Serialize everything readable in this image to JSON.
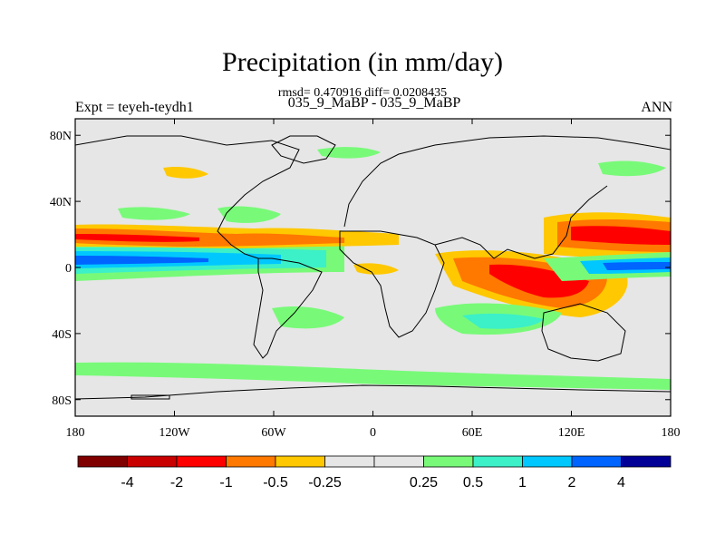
{
  "header": {
    "title": "Precipitation (in mm/day)",
    "stats": "rmsd= 0.470916 diff= 0.0208435",
    "comparison": "035_9_MaBP - 035_9_MaBP",
    "left_label": "Expt = teyeh-teydh1",
    "right_label": "ANN"
  },
  "map": {
    "background_color": "#e6e6e6",
    "lat_ticks": [
      {
        "value": 80,
        "label": "80N"
      },
      {
        "value": 40,
        "label": "40N"
      },
      {
        "value": 0,
        "label": "0"
      },
      {
        "value": -40,
        "label": "40S"
      },
      {
        "value": -80,
        "label": "80S"
      }
    ],
    "lon_ticks": [
      {
        "value": -180,
        "label": "180"
      },
      {
        "value": -120,
        "label": "120W"
      },
      {
        "value": -60,
        "label": "60W"
      },
      {
        "value": 0,
        "label": "0"
      },
      {
        "value": 60,
        "label": "60E"
      },
      {
        "value": 120,
        "label": "120E"
      },
      {
        "value": 180,
        "label": "180"
      }
    ]
  },
  "colorbar": {
    "colors": [
      "#800000",
      "#c80000",
      "#ff0000",
      "#ff7800",
      "#ffc800",
      "#e6e6e6",
      "#e6e6e6",
      "#78fa78",
      "#3cf0c8",
      "#00c8ff",
      "#0064ff",
      "#000096"
    ],
    "labels": [
      "-4",
      "-2",
      "-1",
      "-0.5",
      "-0.25",
      "0.25",
      "0.5",
      "1",
      "2",
      "4"
    ]
  }
}
